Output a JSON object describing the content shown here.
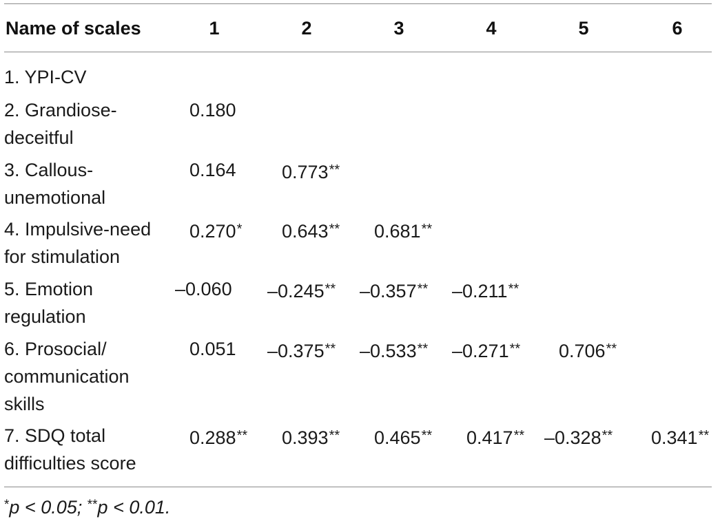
{
  "table": {
    "header": {
      "name": "Name of scales",
      "cols": [
        "1",
        "2",
        "3",
        "4",
        "5",
        "6"
      ]
    },
    "rows": [
      {
        "label": "1. YPI-CV",
        "cells": []
      },
      {
        "label": "2. Grandiose-deceitful",
        "cells": [
          {
            "v": "0.180",
            "s": ""
          }
        ]
      },
      {
        "label": "3. Callous-unemotional",
        "cells": [
          {
            "v": "0.164",
            "s": ""
          },
          {
            "v": "0.773",
            "s": "**"
          }
        ]
      },
      {
        "label": "4. Impulsive-need for stimulation",
        "cells": [
          {
            "v": "0.270",
            "s": "*"
          },
          {
            "v": "0.643",
            "s": "**"
          },
          {
            "v": "0.681",
            "s": "**"
          }
        ]
      },
      {
        "label": "5. Emotion regulation",
        "cells": [
          {
            "v": "–0.060",
            "s": ""
          },
          {
            "v": "–0.245",
            "s": "**"
          },
          {
            "v": "–0.357",
            "s": "**"
          },
          {
            "v": "–0.211",
            "s": "**"
          }
        ]
      },
      {
        "label": "6. Prosocial/ communication skills",
        "cells": [
          {
            "v": "0.051",
            "s": ""
          },
          {
            "v": "–0.375",
            "s": "**"
          },
          {
            "v": "–0.533",
            "s": "**"
          },
          {
            "v": "–0.271",
            "s": "**"
          },
          {
            "v": "0.706",
            "s": "**"
          }
        ]
      },
      {
        "label": "7. SDQ total difficulties score",
        "cells": [
          {
            "v": "0.288",
            "s": "**"
          },
          {
            "v": "0.393",
            "s": "**"
          },
          {
            "v": "0.465",
            "s": "**"
          },
          {
            "v": "0.417",
            "s": "**"
          },
          {
            "v": "–0.328",
            "s": "**"
          },
          {
            "v": "0.341",
            "s": "**"
          }
        ]
      }
    ],
    "footnote": {
      "mark1": "*",
      "text1": "p < 0.05; ",
      "mark2": "**",
      "text2": "p < 0.01."
    }
  }
}
